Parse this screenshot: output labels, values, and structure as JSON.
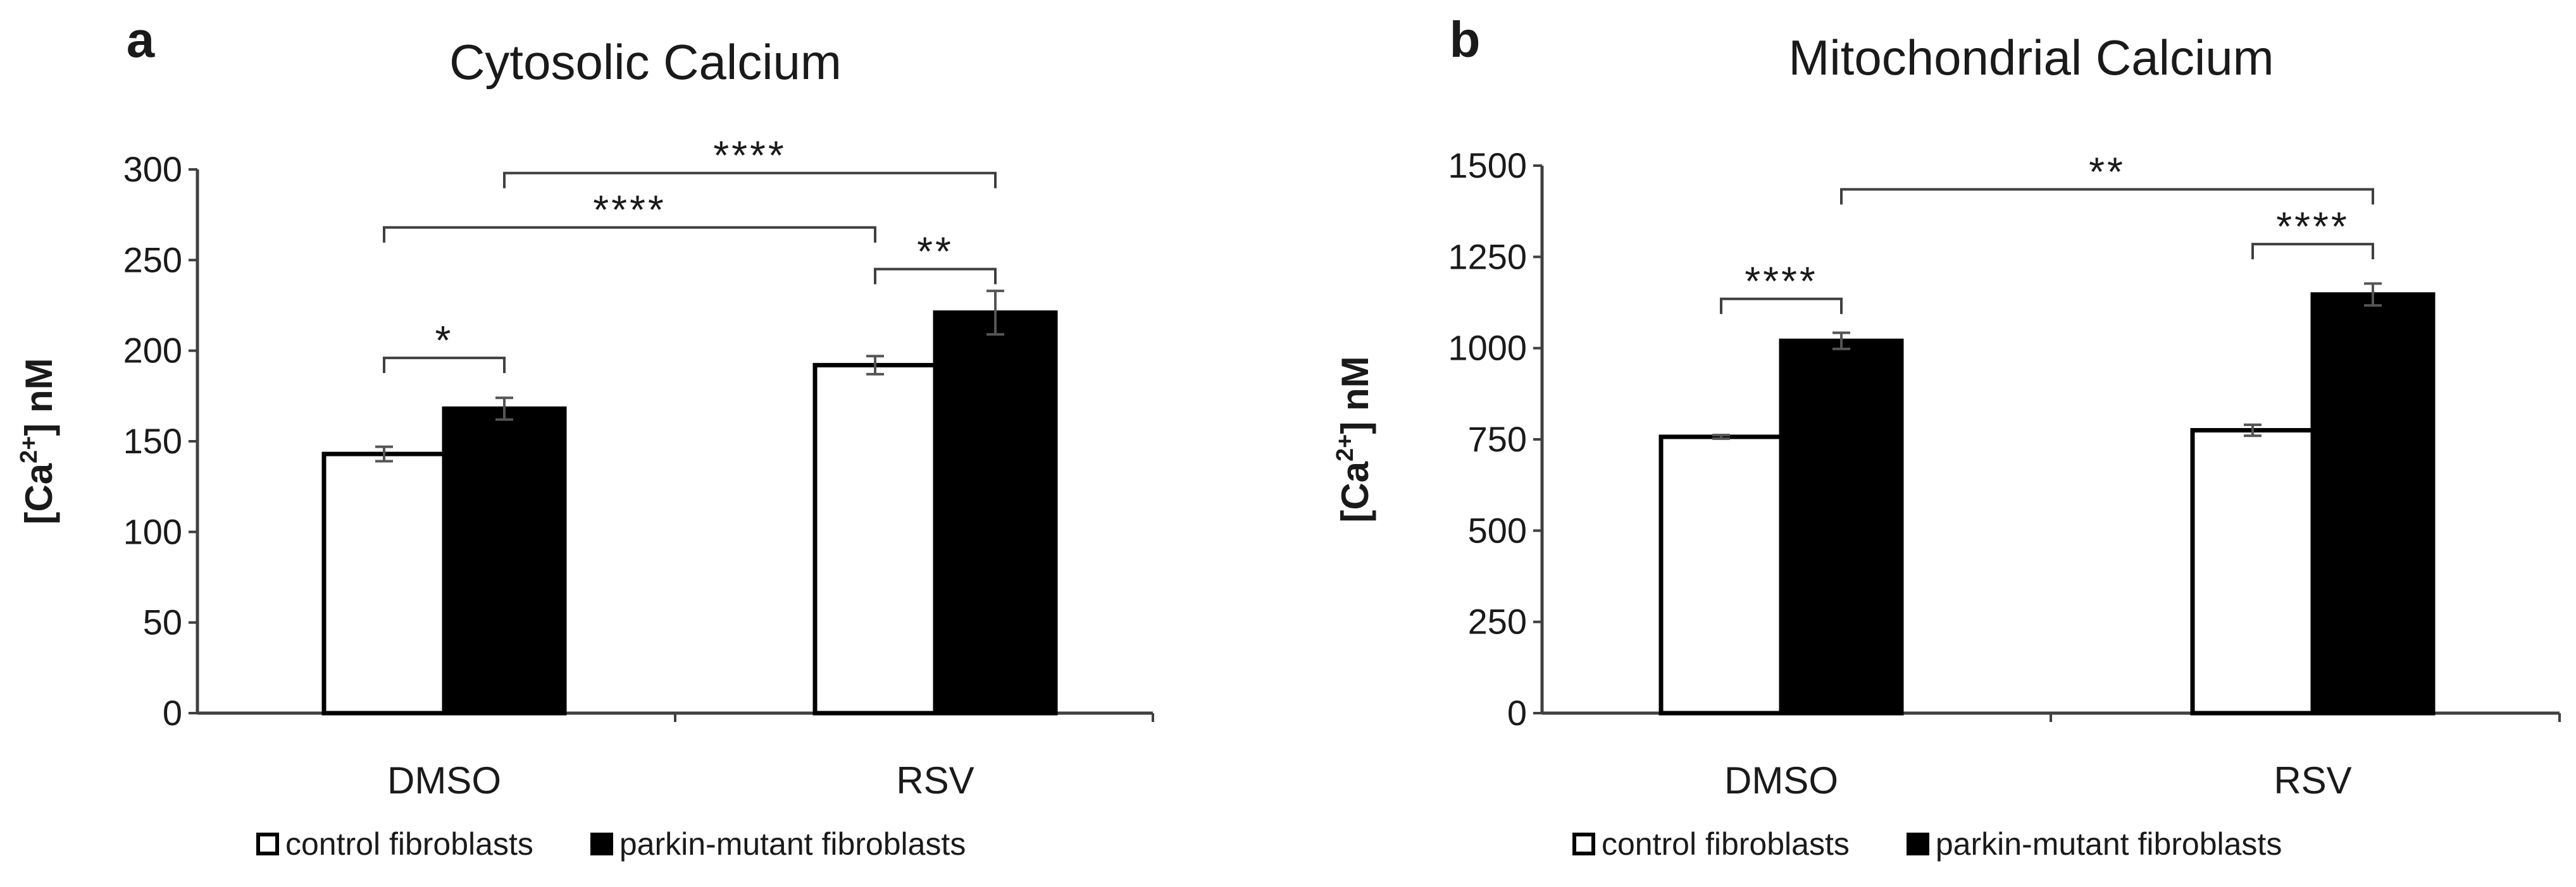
{
  "colors": {
    "control": "#ffffff",
    "mutant": "#000000",
    "axis": "#404040",
    "error": "#555555"
  },
  "legend": {
    "control_label": "control fibroblasts",
    "mutant_label": "parkin-mutant fibroblasts"
  },
  "chart_data": [
    {
      "type": "bar",
      "panel_label": "a",
      "title": "Cytosolic Calcium",
      "ylabel_pre": "[Ca",
      "ylabel_sup": "2+",
      "ylabel_post": "]  nM",
      "xlabel": "",
      "ylim": [
        0,
        300
      ],
      "yticks": [
        0,
        50,
        100,
        150,
        200,
        250,
        300
      ],
      "categories": [
        "DMSO",
        "RSV"
      ],
      "series": [
        {
          "name": "control fibroblasts",
          "values": [
            143,
            192
          ],
          "errors": [
            4,
            5
          ]
        },
        {
          "name": "parkin-mutant fibroblasts",
          "values": [
            168,
            221
          ],
          "errors": [
            6,
            12
          ]
        }
      ],
      "annotations": [
        {
          "text": "*",
          "from": [
            0,
            0
          ],
          "to": [
            0,
            1
          ],
          "level": 196
        },
        {
          "text": "**",
          "from": [
            1,
            0
          ],
          "to": [
            1,
            1
          ],
          "level": 245
        },
        {
          "text": "****",
          "from": [
            0,
            0
          ],
          "to": [
            1,
            0
          ],
          "level": 268
        },
        {
          "text": "****",
          "from": [
            0,
            1
          ],
          "to": [
            1,
            1
          ],
          "level": 298
        }
      ]
    },
    {
      "type": "bar",
      "panel_label": "b",
      "title": "Mitochondrial Calcium",
      "ylabel_pre": "[Ca",
      "ylabel_sup": "2+",
      "ylabel_post": "]  nM",
      "xlabel": "",
      "ylim": [
        0,
        1500
      ],
      "yticks": [
        0,
        250,
        500,
        750,
        1000,
        1250,
        1500
      ],
      "categories": [
        "DMSO",
        "RSV"
      ],
      "series": [
        {
          "name": "control fibroblasts",
          "values": [
            757,
            775
          ],
          "errors": [
            5,
            15
          ]
        },
        {
          "name": "parkin-mutant fibroblasts",
          "values": [
            1020,
            1147
          ],
          "errors": [
            22,
            30
          ]
        }
      ],
      "annotations": [
        {
          "text": "****",
          "from": [
            0,
            0
          ],
          "to": [
            0,
            1
          ],
          "level": 1135
        },
        {
          "text": "****",
          "from": [
            1,
            0
          ],
          "to": [
            1,
            1
          ],
          "level": 1285
        },
        {
          "text": "**",
          "from": [
            0,
            1
          ],
          "to": [
            1,
            1
          ],
          "level": 1435
        }
      ]
    }
  ]
}
